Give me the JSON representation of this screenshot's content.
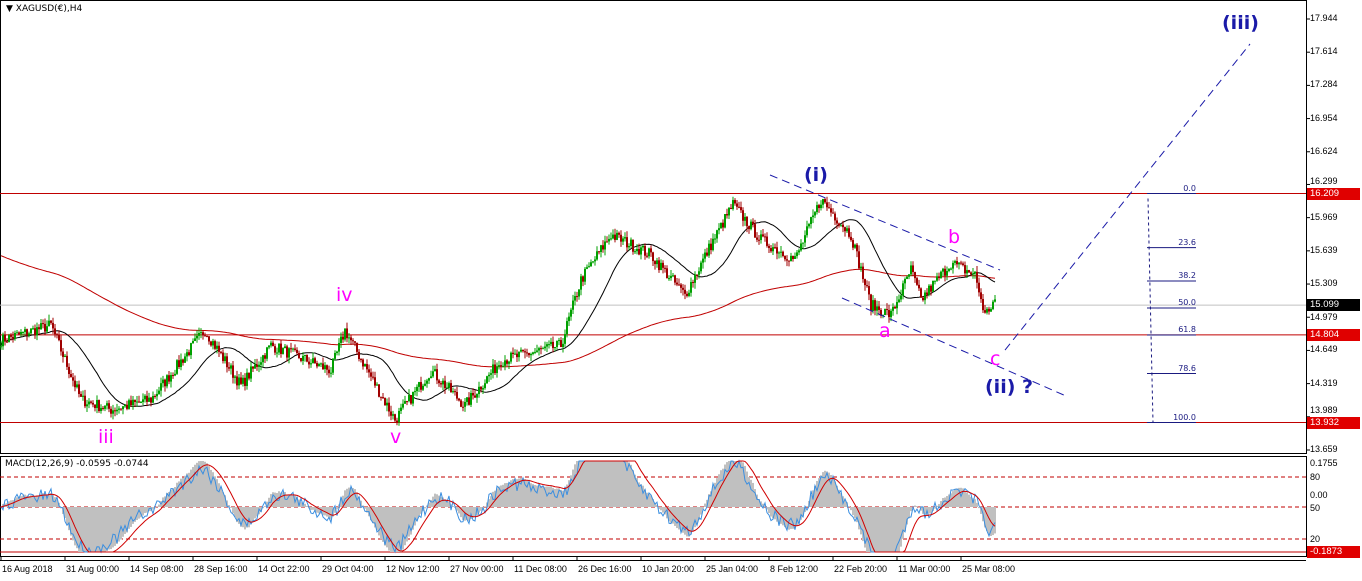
{
  "header": {
    "symbol_title": "XAGUSD(€),H4",
    "collapse_icon": "triangle-down-icon"
  },
  "chart_data": {
    "type": "candlestick",
    "title": "XAGUSD(€),H4",
    "ylim": [
      13.659,
      17.944
    ],
    "price_ticks": [
      "17.944",
      "17.614",
      "17.284",
      "16.954",
      "16.624",
      "16.299",
      "15.969",
      "15.639",
      "15.309",
      "14.979",
      "14.649",
      "14.319",
      "13.989",
      "13.659"
    ],
    "x_tick_labels": [
      "16 Aug 2018",
      "31 Aug 00:00",
      "14 Sep 08:00",
      "28 Sep 16:00",
      "14 Oct 22:00",
      "29 Oct 04:00",
      "12 Nov 12:00",
      "27 Nov 00:00",
      "11 Dec 08:00",
      "26 Dec 16:00",
      "10 Jan 20:00",
      "25 Jan 04:00",
      "8 Feb 12:00",
      "22 Feb 20:00",
      "11 Mar 00:00",
      "25 Mar 08:00"
    ],
    "price_path_bar_price": [
      [
        0,
        14.75
      ],
      [
        25,
        14.9
      ],
      [
        40,
        14.16
      ],
      [
        55,
        14.06
      ],
      [
        75,
        14.16
      ],
      [
        102,
        14.85
      ],
      [
        120,
        14.3
      ],
      [
        135,
        14.7
      ],
      [
        165,
        14.45
      ],
      [
        172,
        14.85
      ],
      [
        197,
        13.96
      ],
      [
        215,
        14.45
      ],
      [
        232,
        14.1
      ],
      [
        250,
        14.55
      ],
      [
        280,
        14.7
      ],
      [
        290,
        15.35
      ],
      [
        305,
        15.8
      ],
      [
        325,
        15.6
      ],
      [
        342,
        15.2
      ],
      [
        355,
        15.7
      ],
      [
        366,
        16.1
      ],
      [
        380,
        15.75
      ],
      [
        397,
        15.55
      ],
      [
        410,
        16.15
      ],
      [
        425,
        15.8
      ],
      [
        435,
        15.1
      ],
      [
        445,
        15.0
      ],
      [
        455,
        15.45
      ],
      [
        460,
        15.15
      ],
      [
        475,
        15.52
      ],
      [
        487,
        15.4
      ],
      [
        492,
        15.0
      ],
      [
        497,
        15.15
      ]
    ],
    "horizontal_levels": [
      {
        "price": 16.209,
        "label": "16.209",
        "color": "#e00000"
      },
      {
        "price": 14.804,
        "label": "14.804",
        "color": "#e00000"
      },
      {
        "price": 13.932,
        "label": "13.932",
        "color": "#e00000"
      }
    ],
    "current_price": {
      "price": 15.099,
      "label": "15.099"
    },
    "fibonacci": {
      "from": 13.932,
      "to": 16.209,
      "levels": [
        "0.0",
        "23.6",
        "38.2",
        "50.0",
        "61.8",
        "78.6",
        "100.0"
      ],
      "ratios": [
        0,
        0.236,
        0.382,
        0.5,
        0.618,
        0.786,
        1.0
      ]
    },
    "moving_averages": [
      {
        "name": "slow MA",
        "color": "#c00000"
      },
      {
        "name": "fast MA",
        "color": "#000000"
      }
    ],
    "annotations": {
      "iii": "iii",
      "iv": "iv",
      "v": "v",
      "i_paren": "(i)",
      "a": "a",
      "b": "b",
      "c": "c",
      "ii_paren": "(ii) ?",
      "iii_paren": "(iii)"
    },
    "macd": {
      "label": "MACD(12,26,9) -0.0595 -0.0744",
      "scale_top": "0.1755",
      "scale_bottom": "-0.1873",
      "levels": [
        "80",
        "50",
        "20"
      ],
      "zero_label": "0.00",
      "histogram_color": "#c0c0c0",
      "signal_color": "#d00000",
      "osc_color": "#3a8ee0"
    }
  }
}
